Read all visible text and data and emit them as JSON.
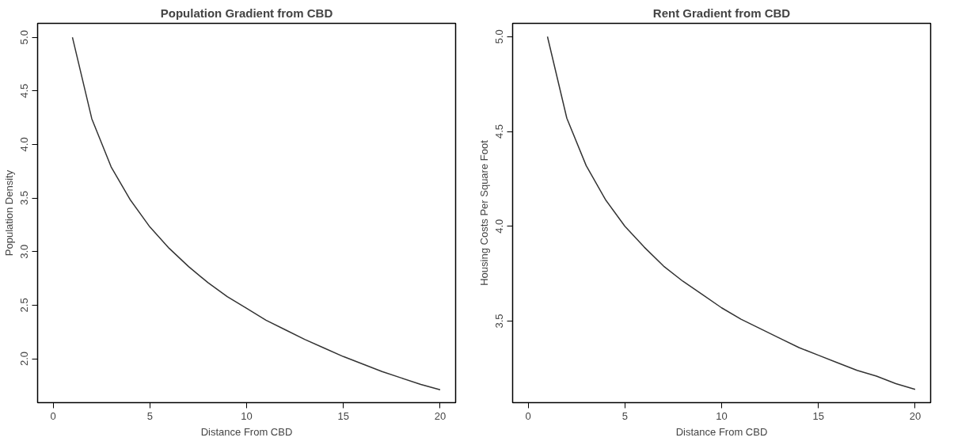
{
  "chart_data": [
    {
      "type": "line",
      "title": "Population Gradient from CBD",
      "xlabel": "Distance From CBD",
      "ylabel": "Population Density",
      "x": [
        1,
        2,
        3,
        4,
        5,
        6,
        7,
        8,
        9,
        10,
        11,
        12,
        13,
        14,
        15,
        16,
        17,
        18,
        19,
        20
      ],
      "series": [
        {
          "color": "#333333",
          "values": [
            5.0,
            4.24,
            3.79,
            3.48,
            3.23,
            3.03,
            2.86,
            2.71,
            2.58,
            2.47,
            2.36,
            2.27,
            2.18,
            2.1,
            2.02,
            1.95,
            1.88,
            1.82,
            1.76,
            1.71
          ]
        }
      ],
      "xlim": [
        -0.8,
        20.8
      ],
      "xticks": [
        0,
        5,
        10,
        15,
        20
      ],
      "ylim": [
        1.59,
        5.13
      ],
      "yticks": [
        {
          "value": 2,
          "label": "2.0"
        },
        2.5,
        {
          "value": 3,
          "label": "3.0"
        },
        3.5,
        {
          "value": 4,
          "label": "4.0"
        },
        4.5,
        {
          "value": 5,
          "label": "5.0"
        }
      ],
      "grid": false
    },
    {
      "type": "line",
      "title": "Rent Gradient from CBD",
      "xlabel": "Distance From CBD",
      "ylabel": "Housing Costs Per Square Foot",
      "x": [
        1,
        2,
        3,
        4,
        5,
        6,
        7,
        8,
        9,
        10,
        11,
        12,
        13,
        14,
        15,
        16,
        17,
        18,
        19,
        20
      ],
      "series": [
        {
          "color": "#333333",
          "values": [
            5.0,
            4.57,
            4.32,
            4.14,
            4.0,
            3.89,
            3.79,
            3.71,
            3.64,
            3.57,
            3.51,
            3.46,
            3.41,
            3.36,
            3.32,
            3.28,
            3.24,
            3.21,
            3.17,
            3.14
          ]
        }
      ],
      "xlim": [
        -0.8,
        20.8
      ],
      "xticks": [
        0,
        5,
        10,
        15,
        20
      ],
      "ylim": [
        3.07,
        5.07
      ],
      "yticks": [
        3.5,
        {
          "value": 4,
          "label": "4.0"
        },
        4.5,
        {
          "value": 5,
          "label": "5.0"
        }
      ],
      "grid": false
    }
  ]
}
